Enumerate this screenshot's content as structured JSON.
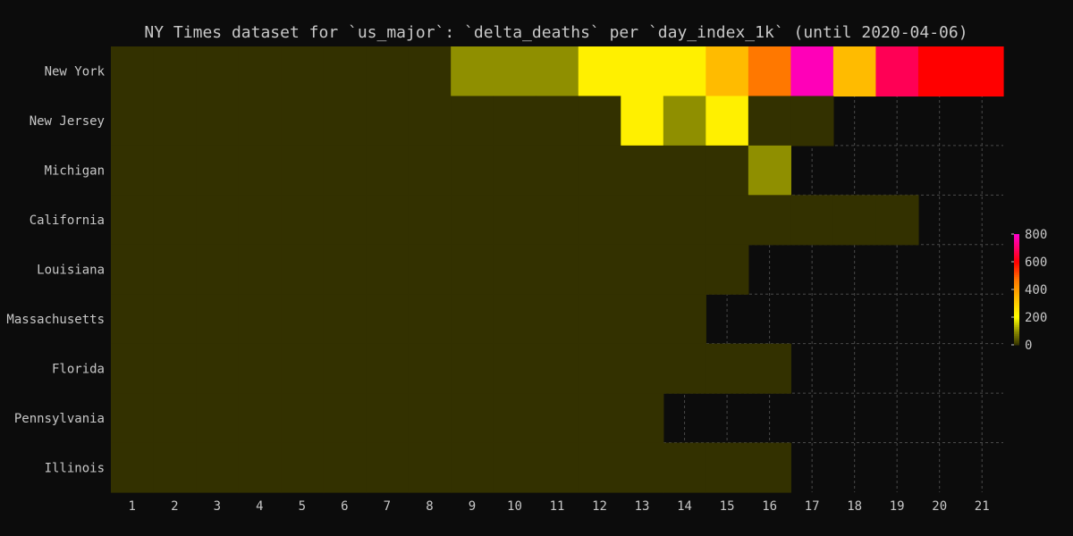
{
  "chart_data": {
    "type": "heatmap",
    "title": "NY Times dataset for `us_major`: `delta_deaths` per `day_index_1k` (until 2020-04-06)",
    "xlabel": "",
    "ylabel": "",
    "x": [
      1,
      2,
      3,
      4,
      5,
      6,
      7,
      8,
      9,
      10,
      11,
      12,
      13,
      14,
      15,
      16,
      17,
      18,
      19,
      20,
      21
    ],
    "rows": [
      "New York",
      "New Jersey",
      "Michigan",
      "California",
      "Louisiana",
      "Massachusetts",
      "Florida",
      "Pennsylvania",
      "Illinois"
    ],
    "values": [
      [
        0,
        0,
        0,
        0,
        0,
        0,
        0,
        0,
        100,
        100,
        100,
        230,
        230,
        230,
        340,
        470,
        780,
        340,
        680,
        600,
        600
      ],
      [
        0,
        0,
        0,
        0,
        0,
        0,
        0,
        0,
        0,
        0,
        0,
        0,
        230,
        100,
        230,
        0,
        0,
        null,
        null,
        null,
        null
      ],
      [
        0,
        0,
        0,
        0,
        0,
        0,
        0,
        0,
        0,
        0,
        0,
        0,
        0,
        0,
        0,
        100,
        null,
        null,
        null,
        null,
        null
      ],
      [
        0,
        0,
        0,
        0,
        0,
        0,
        0,
        0,
        0,
        0,
        0,
        0,
        0,
        0,
        0,
        0,
        0,
        0,
        0,
        null,
        null
      ],
      [
        0,
        0,
        0,
        0,
        0,
        0,
        0,
        0,
        0,
        0,
        0,
        0,
        0,
        0,
        0,
        null,
        null,
        null,
        null,
        null,
        null
      ],
      [
        0,
        0,
        0,
        0,
        0,
        0,
        0,
        0,
        0,
        0,
        0,
        0,
        0,
        0,
        null,
        null,
        null,
        null,
        null,
        null,
        null
      ],
      [
        0,
        0,
        0,
        0,
        0,
        0,
        0,
        0,
        0,
        0,
        0,
        0,
        0,
        0,
        0,
        0,
        null,
        null,
        null,
        null,
        null
      ],
      [
        0,
        0,
        0,
        0,
        0,
        0,
        0,
        0,
        0,
        0,
        0,
        0,
        0,
        null,
        null,
        null,
        null,
        null,
        null,
        null,
        null
      ],
      [
        0,
        0,
        0,
        0,
        0,
        0,
        0,
        0,
        0,
        0,
        0,
        0,
        0,
        0,
        0,
        0,
        null,
        null,
        null,
        null,
        null
      ]
    ],
    "colorbar": {
      "range": [
        0,
        800
      ],
      "ticks": [
        0,
        200,
        400,
        600,
        800
      ],
      "tick_labels": [
        "0",
        "200",
        "400",
        "600",
        "800"
      ]
    },
    "colors": {
      "background": "#0c0c0c",
      "text": "#c8c8c8",
      "grid": "#4a4a4a",
      "empty": "#0c0c0c"
    },
    "grid": true
  }
}
